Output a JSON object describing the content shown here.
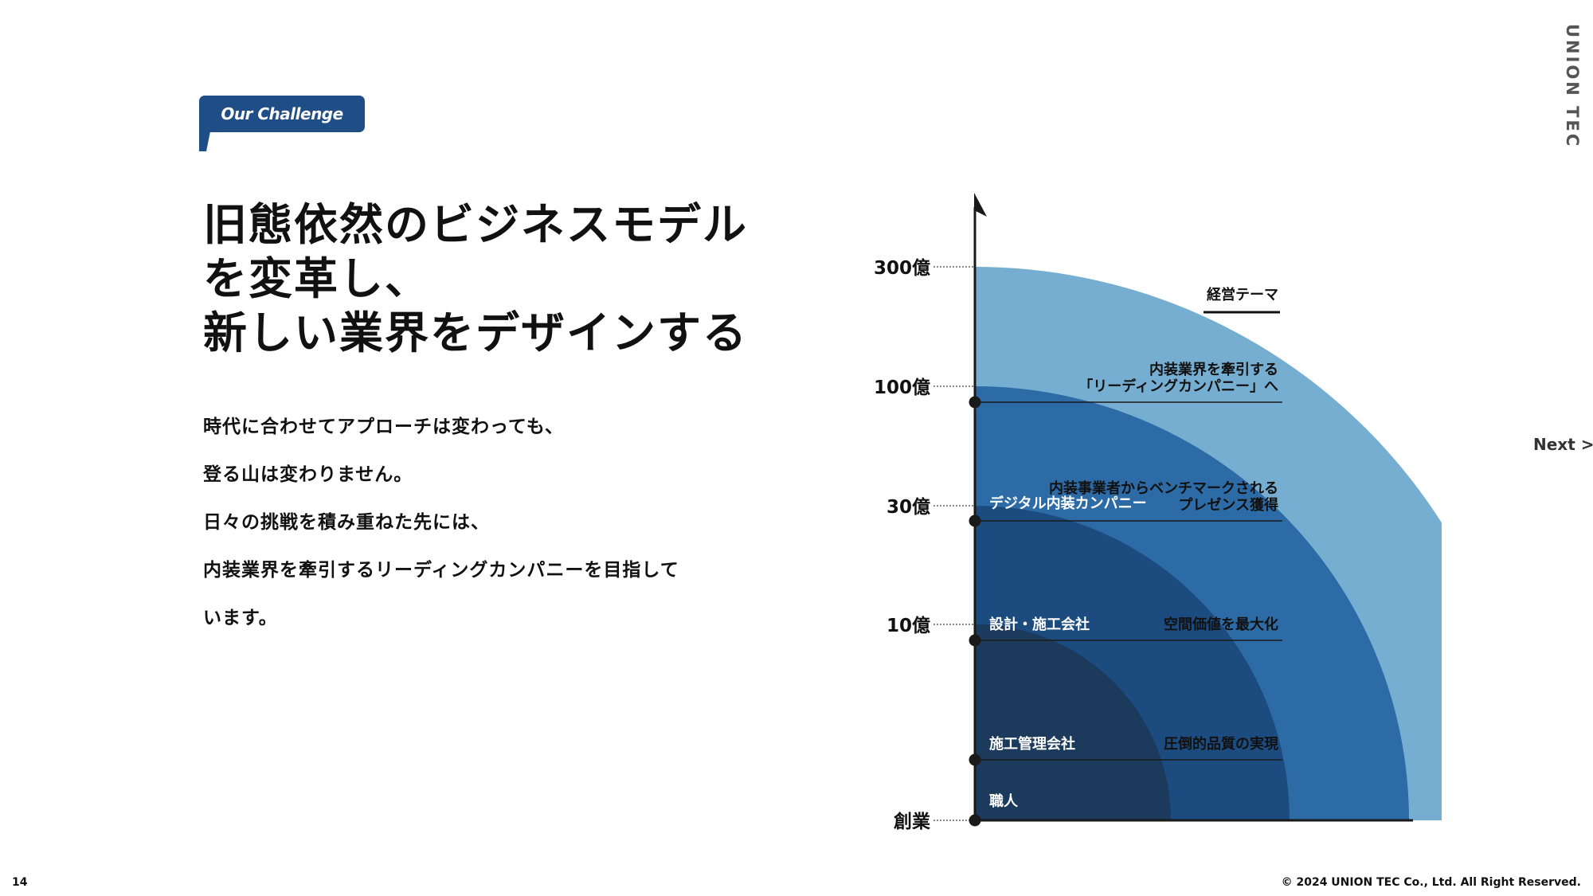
{
  "brand": "UNION TEC",
  "badge": "Our Challenge",
  "headline": [
    "旧態依然のビジネスモデル",
    "を変革し、",
    "新しい業界をデザインする"
  ],
  "body": [
    "時代に合わせてアプローチは変わっても、",
    "登る山は変わりません。",
    "日々の挑戦を積み重ねた先には、",
    "内装業界を牽引するリーディングカンパニーを目指して",
    "います。"
  ],
  "nav": {
    "next_label": "Next",
    "next_arrow": ">"
  },
  "footer": {
    "page_number": "14",
    "copyright": "© 2024 UNION TEC Co., Ltd. All Right Reserved."
  },
  "chart_data": {
    "type": "area",
    "y_ticks": [
      {
        "label": "300億",
        "level": 5
      },
      {
        "label": "100億",
        "level": 4
      },
      {
        "label": "30億",
        "level": 3
      },
      {
        "label": "10億",
        "level": 2
      },
      {
        "label": "創業",
        "level": 0
      }
    ],
    "theme_header": "経営テーマ",
    "stages": [
      {
        "name": "職人",
        "level": 1
      },
      {
        "name": "施工管理会社",
        "level": 2,
        "theme": [
          "圧倒的品質の実現"
        ]
      },
      {
        "name": "設計・施工会社",
        "level": 3,
        "theme": [
          "空間価値を最大化"
        ]
      },
      {
        "name": "デジタル内装カンパニー",
        "level": 4,
        "theme": [
          "内装事業者からベンチマークされる",
          "プレゼンス獲得"
        ]
      },
      {
        "name": "",
        "level": 5,
        "theme": [
          "内装業界を牽引する",
          "「リーディングカンパニー」へ"
        ]
      }
    ],
    "colors": [
      "#1b3a5c",
      "#1c4b80",
      "#2d6ba7",
      "#76aed1"
    ]
  }
}
